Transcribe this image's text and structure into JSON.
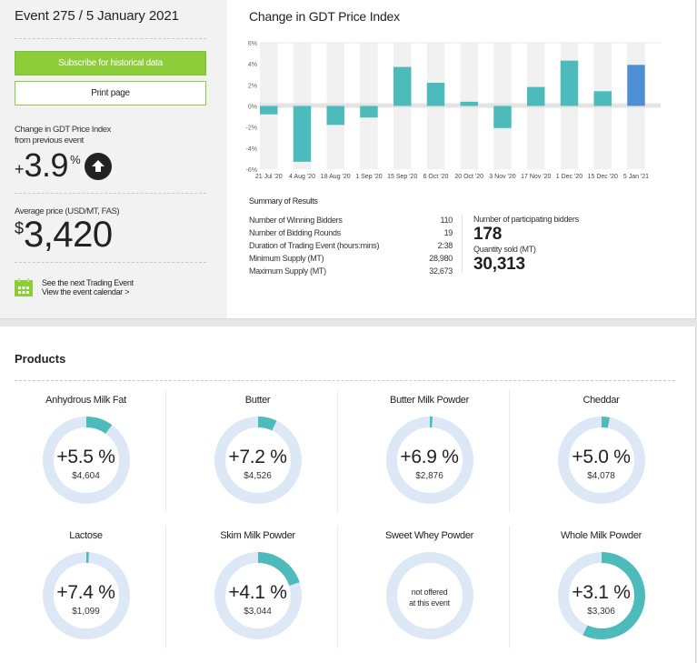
{
  "event": {
    "title": "Event 275 / 5 January 2021",
    "subscribe_label": "Subscribe for historical data",
    "print_label": "Print page",
    "change_label_line1": "Change in GDT Price Index",
    "change_label_line2": "from previous event",
    "change_sign": "+",
    "change_value": "3.9",
    "change_unit": "%",
    "change_direction_icon": "arrow-up-circle-icon",
    "avg_price_label": "Average price (USD/MT, FAS)",
    "avg_price_currency": "$",
    "avg_price_value": "3,420",
    "calendar_line1": "See the next Trading Event",
    "calendar_line2": "View the event calendar >",
    "calendar_icon": "calendar-icon"
  },
  "colors": {
    "accent_green": "#8dcd3a",
    "bar_teal": "#4dbbbb",
    "bar_current_blue": "#4f8fd6",
    "donut_track": "#dde8f6",
    "donut_fill": "#4dbbbb"
  },
  "chart_data": {
    "type": "bar",
    "title": "Change in GDT Price Index",
    "xlabel": "",
    "ylabel": "",
    "ylim": [
      -6,
      6
    ],
    "yticks": [
      6,
      4,
      2,
      0,
      -2,
      -4,
      -6
    ],
    "ytick_labels": [
      "6%",
      "4%",
      "2%",
      "0%",
      "-2%",
      "-4%",
      "-6%"
    ],
    "categories": [
      "21 Jul '20",
      "4 Aug '20",
      "18 Aug '20",
      "1 Sep '20",
      "15 Sep '20",
      "6 Oct '20",
      "20 Oct '20",
      "3 Nov '20",
      "17 Nov '20",
      "1 Dec '20",
      "15 Dec '20",
      "5 Jan '21"
    ],
    "values": [
      -0.8,
      -5.3,
      -1.8,
      -1.1,
      3.7,
      2.2,
      0.4,
      -2.1,
      1.8,
      4.3,
      1.4,
      3.9
    ],
    "highlight_index": 11,
    "grid": "alternating column bands",
    "legend": "none"
  },
  "summary": {
    "title": "Summary of Results",
    "rows": [
      {
        "label": "Number of Winning Bidders",
        "value": "110"
      },
      {
        "label": "Number of Bidding Rounds",
        "value": "19"
      },
      {
        "label": "Duration of Trading Event (hours:mins)",
        "value": "2:38"
      },
      {
        "label": "Minimum Supply (MT)",
        "value": "28,980"
      },
      {
        "label": "Maximum Supply (MT)",
        "value": "32,673"
      }
    ],
    "participants_label": "Number of participating bidders",
    "participants_value": "178",
    "quantity_label": "Quantity sold (MT)",
    "quantity_value": "30,313"
  },
  "products": {
    "title": "Products",
    "items": [
      {
        "name": "Anhydrous Milk Fat",
        "change": "+5.5 %",
        "price": "$4,604",
        "share": 0.1,
        "note": ""
      },
      {
        "name": "Butter",
        "change": "+7.2 %",
        "price": "$4,526",
        "share": 0.07,
        "note": ""
      },
      {
        "name": "Butter Milk Powder",
        "change": "+6.9 %",
        "price": "$2,876",
        "share": 0.01,
        "note": ""
      },
      {
        "name": "Cheddar",
        "change": "+5.0 %",
        "price": "$4,078",
        "share": 0.03,
        "note": ""
      },
      {
        "name": "Lactose",
        "change": "+7.4 %",
        "price": "$1,099",
        "share": 0.01,
        "note": ""
      },
      {
        "name": "Skim Milk Powder",
        "change": "+4.1 %",
        "price": "$3,044",
        "share": 0.2,
        "note": ""
      },
      {
        "name": "Sweet Whey Powder",
        "change": "",
        "price": "",
        "share": 0,
        "note_line1": "not offered",
        "note_line2": "at this event"
      },
      {
        "name": "Whole Milk Powder",
        "change": "+3.1 %",
        "price": "$3,306",
        "share": 0.57,
        "note": ""
      }
    ]
  }
}
